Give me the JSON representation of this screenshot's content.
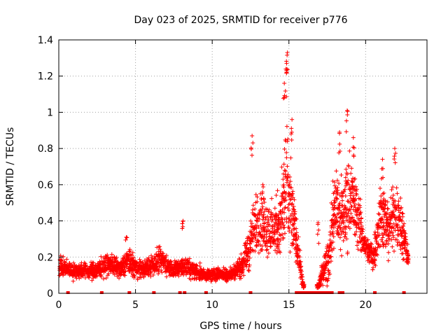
{
  "chart_data": {
    "type": "scatter",
    "title": "Day 023 of 2025, SRMTID for receiver p776",
    "xlabel": "GPS time / hours",
    "ylabel": "SRMTID / TECUs",
    "xlim": [
      0,
      24
    ],
    "ylim": [
      0,
      1.4
    ],
    "x_ticks": [
      0,
      5,
      10,
      15,
      20
    ],
    "y_ticks": [
      0,
      0.2,
      0.4,
      0.6,
      0.8,
      1,
      1.2,
      1.4
    ],
    "x_tick_labels": [
      "0",
      "5",
      "10",
      "15",
      "20"
    ],
    "y_tick_labels": [
      "0",
      "0.2",
      "0.4",
      "0.6",
      "0.8",
      "1",
      "1.2",
      "1.4"
    ],
    "grid": true,
    "marker": "+",
    "marker_color": "#ff0000",
    "activity_envelope": {
      "x": [
        0,
        0.5,
        1,
        1.5,
        2,
        2.5,
        3,
        3.5,
        4,
        4.5,
        5,
        5.5,
        6,
        6.5,
        7,
        7.5,
        8,
        8.5,
        9,
        9.5,
        10,
        10.5,
        11,
        11.5,
        12,
        12.5,
        13,
        13.5,
        14,
        14.5,
        14.8,
        15,
        15.3,
        16,
        16.8,
        17.2,
        17.6,
        18,
        18.5,
        18.8,
        19,
        19.5,
        20,
        20.5,
        21,
        21.5,
        22,
        22.5,
        22.8
      ],
      "center": [
        0.16,
        0.14,
        0.12,
        0.13,
        0.12,
        0.13,
        0.15,
        0.16,
        0.13,
        0.18,
        0.14,
        0.13,
        0.15,
        0.18,
        0.16,
        0.13,
        0.15,
        0.14,
        0.12,
        0.1,
        0.1,
        0.11,
        0.1,
        0.12,
        0.16,
        0.28,
        0.42,
        0.36,
        0.34,
        0.42,
        0.6,
        0.5,
        0.4,
        0,
        0,
        0.12,
        0.2,
        0.5,
        0.4,
        0.5,
        0.55,
        0.42,
        0.25,
        0.2,
        0.45,
        0.35,
        0.45,
        0.3,
        0.18
      ],
      "spread": [
        0.05,
        0.04,
        0.04,
        0.04,
        0.04,
        0.04,
        0.05,
        0.05,
        0.04,
        0.06,
        0.05,
        0.04,
        0.05,
        0.06,
        0.05,
        0.04,
        0.05,
        0.05,
        0.04,
        0.03,
        0.03,
        0.03,
        0.03,
        0.04,
        0.06,
        0.12,
        0.15,
        0.14,
        0.13,
        0.18,
        0.35,
        0.25,
        0.15,
        0,
        0,
        0.06,
        0.12,
        0.2,
        0.18,
        0.22,
        0.2,
        0.15,
        0.05,
        0.08,
        0.15,
        0.14,
        0.16,
        0.12,
        0.04
      ]
    },
    "peaks": [
      {
        "x": 12.6,
        "y": 0.87
      },
      {
        "x": 14.9,
        "y": 1.33
      },
      {
        "x": 14.85,
        "y": 1.27
      },
      {
        "x": 14.7,
        "y": 1.16
      },
      {
        "x": 15.2,
        "y": 0.96
      },
      {
        "x": 18.3,
        "y": 0.89
      },
      {
        "x": 18.8,
        "y": 1.01
      },
      {
        "x": 19.2,
        "y": 0.86
      },
      {
        "x": 21.1,
        "y": 0.74
      },
      {
        "x": 21.9,
        "y": 0.8
      },
      {
        "x": 8.1,
        "y": 0.4
      },
      {
        "x": 16.9,
        "y": 0.39
      },
      {
        "x": 4.4,
        "y": 0.31
      },
      {
        "x": 13.3,
        "y": 0.6
      }
    ],
    "zero_points_x": [
      0.6,
      2.8,
      4.6,
      6.2,
      7.9,
      8.2,
      9.6,
      12.5,
      15.5,
      15.6,
      15.7,
      15.8,
      15.9,
      16.0,
      16.1,
      16.2,
      16.3,
      16.4,
      16.5,
      16.6,
      16.7,
      16.8,
      16.9,
      17.0,
      17.1,
      17.2,
      17.4,
      17.6,
      17.8,
      18.3,
      18.5,
      20.6,
      22.5
    ]
  }
}
